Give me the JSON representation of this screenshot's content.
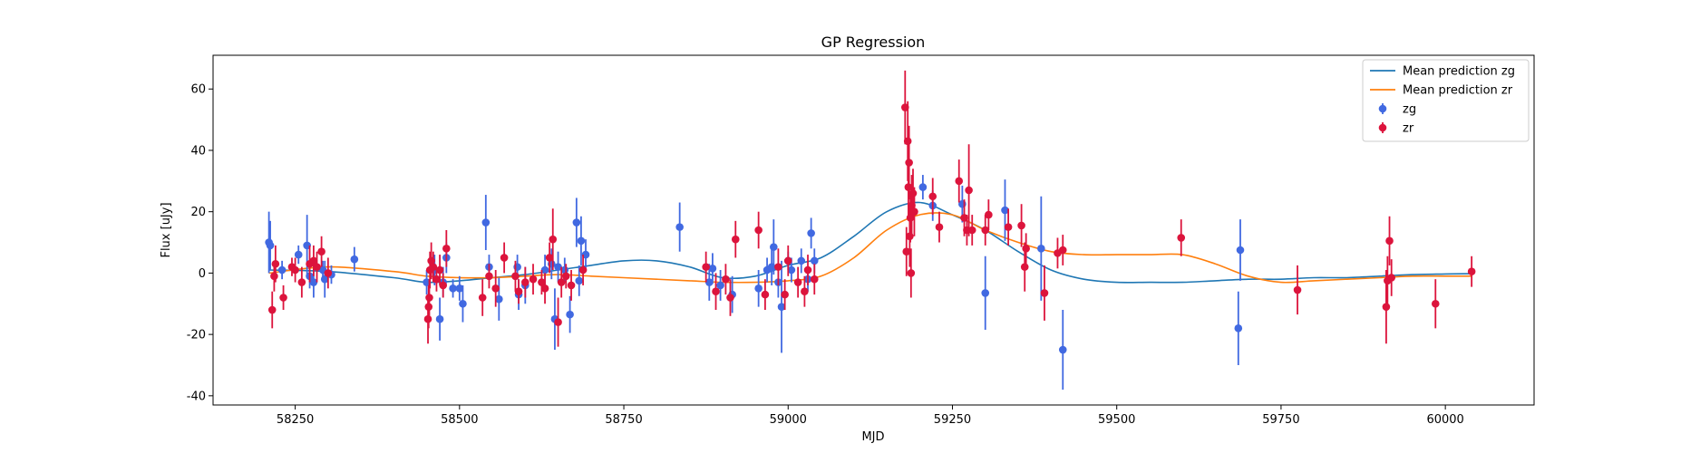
{
  "chart_data": {
    "type": "scatter",
    "title": "GP Regression",
    "xlabel": "MJD",
    "ylabel": "Flux [uJy]",
    "xlim": [
      58125,
      60135
    ],
    "ylim": [
      -43,
      71
    ],
    "xticks": [
      58250,
      58500,
      58750,
      59000,
      59250,
      59500,
      59750,
      60000
    ],
    "yticks": [
      -40,
      -20,
      0,
      20,
      40,
      60
    ],
    "grid": false,
    "legend_position": "top-right",
    "colors": {
      "zg_line": "#1f77b4",
      "zr_line": "#ff7f0e",
      "zg_points": "#4169e1",
      "zr_points": "#dc143c"
    },
    "lines": [
      {
        "name": "Mean prediction zg",
        "color": "#1f77b4",
        "x": [
          58210,
          58300,
          58400,
          58450,
          58500,
          58550,
          58600,
          58650,
          58700,
          58750,
          58800,
          58850,
          58900,
          58950,
          59000,
          59050,
          59100,
          59150,
          59200,
          59250,
          59300,
          59350,
          59400,
          59450,
          59500,
          59550,
          59600,
          59650,
          59700,
          59750,
          59800,
          59850,
          59900,
          59950,
          60000,
          60040
        ],
        "y": [
          1,
          0.5,
          -1.5,
          -3,
          -2.5,
          -1.5,
          -0.5,
          1,
          2.5,
          4,
          4,
          2,
          -1.5,
          -1,
          2.5,
          5,
          12,
          20,
          23,
          19,
          14,
          7,
          1,
          -2,
          -3,
          -3,
          -3,
          -2.5,
          -2,
          -2,
          -1.5,
          -1.5,
          -1,
          -0.5,
          -0.3,
          -0.2
        ]
      },
      {
        "name": "Mean prediction zr",
        "color": "#ff7f0e",
        "x": [
          58210,
          58300,
          58400,
          58450,
          58500,
          58550,
          58600,
          58650,
          58700,
          58750,
          58800,
          58850,
          58900,
          58950,
          59000,
          59050,
          59100,
          59150,
          59200,
          59250,
          59300,
          59350,
          59400,
          59450,
          59500,
          59550,
          59600,
          59650,
          59700,
          59750,
          59800,
          59850,
          59900,
          59950,
          60000,
          60040
        ],
        "y": [
          0,
          2,
          0.5,
          -1,
          -1.5,
          -1.5,
          -1,
          -0.5,
          -1,
          -1.5,
          -2,
          -2.5,
          -3,
          -3,
          -2.5,
          -1,
          5,
          14,
          19,
          19,
          14,
          10,
          7,
          6,
          6,
          6,
          6,
          3,
          -1,
          -3,
          -2.5,
          -2,
          -1.5,
          -1,
          -1,
          -1
        ]
      }
    ],
    "series": [
      {
        "name": "zg",
        "color": "#4169e1",
        "points": [
          {
            "x": 58210,
            "y": 10,
            "err": 10
          },
          {
            "x": 58212,
            "y": 9,
            "err": 8
          },
          {
            "x": 58230,
            "y": 1,
            "err": 3
          },
          {
            "x": 58255,
            "y": 6,
            "err": 3
          },
          {
            "x": 58268,
            "y": 9,
            "err": 10
          },
          {
            "x": 58272,
            "y": -1,
            "err": 4
          },
          {
            "x": 58278,
            "y": -3,
            "err": 5
          },
          {
            "x": 58292,
            "y": 1,
            "err": 3
          },
          {
            "x": 58295,
            "y": -2,
            "err": 6
          },
          {
            "x": 58305,
            "y": -0.5,
            "err": 3
          },
          {
            "x": 58340,
            "y": 4.5,
            "err": 4
          },
          {
            "x": 58450,
            "y": -3,
            "err": 4
          },
          {
            "x": 58462,
            "y": 1,
            "err": 5
          },
          {
            "x": 58470,
            "y": -15,
            "err": 7
          },
          {
            "x": 58475,
            "y": -3,
            "err": 5
          },
          {
            "x": 58480,
            "y": 5,
            "err": 5
          },
          {
            "x": 58490,
            "y": -5,
            "err": 3
          },
          {
            "x": 58500,
            "y": -5,
            "err": 4
          },
          {
            "x": 58505,
            "y": -10,
            "err": 6
          },
          {
            "x": 58540,
            "y": 16.5,
            "err": 9
          },
          {
            "x": 58545,
            "y": 2,
            "err": 4
          },
          {
            "x": 58560,
            "y": -8.5,
            "err": 7
          },
          {
            "x": 58588,
            "y": 2,
            "err": 4
          },
          {
            "x": 58590,
            "y": -7,
            "err": 5
          },
          {
            "x": 58600,
            "y": -4,
            "err": 6
          },
          {
            "x": 58630,
            "y": 1,
            "err": 5
          },
          {
            "x": 58640,
            "y": 3,
            "err": 5
          },
          {
            "x": 58645,
            "y": -15,
            "err": 10
          },
          {
            "x": 58650,
            "y": 2,
            "err": 5
          },
          {
            "x": 58660,
            "y": 1,
            "err": 4
          },
          {
            "x": 58668,
            "y": -13.5,
            "err": 6
          },
          {
            "x": 58678,
            "y": 16.5,
            "err": 8
          },
          {
            "x": 58682,
            "y": -2.5,
            "err": 5
          },
          {
            "x": 58685,
            "y": 10.5,
            "err": 8
          },
          {
            "x": 58692,
            "y": 6,
            "err": 5
          },
          {
            "x": 58835,
            "y": 15,
            "err": 8
          },
          {
            "x": 58880,
            "y": -3,
            "err": 6
          },
          {
            "x": 58885,
            "y": 1.5,
            "err": 5
          },
          {
            "x": 58897,
            "y": -4,
            "err": 5
          },
          {
            "x": 58915,
            "y": -7,
            "err": 6
          },
          {
            "x": 58955,
            "y": -5,
            "err": 6
          },
          {
            "x": 58968,
            "y": 1,
            "err": 4
          },
          {
            "x": 58975,
            "y": 2,
            "err": 6
          },
          {
            "x": 58978,
            "y": 8.5,
            "err": 9
          },
          {
            "x": 58985,
            "y": -3,
            "err": 5
          },
          {
            "x": 58990,
            "y": -11,
            "err": 15
          },
          {
            "x": 59000,
            "y": 4,
            "err": 3
          },
          {
            "x": 59005,
            "y": 1,
            "err": 4
          },
          {
            "x": 59020,
            "y": 4,
            "err": 4
          },
          {
            "x": 59030,
            "y": -2,
            "err": 4
          },
          {
            "x": 59035,
            "y": 13,
            "err": 5
          },
          {
            "x": 59040,
            "y": 4,
            "err": 4
          },
          {
            "x": 59205,
            "y": 28,
            "err": 4
          },
          {
            "x": 59220,
            "y": 22,
            "err": 5
          },
          {
            "x": 59265,
            "y": 22.5,
            "err": 6
          },
          {
            "x": 59300,
            "y": -6.5,
            "err": 12
          },
          {
            "x": 59330,
            "y": 20.5,
            "err": 10
          },
          {
            "x": 59385,
            "y": 8,
            "err": 17
          },
          {
            "x": 59418,
            "y": -25,
            "err": 13
          },
          {
            "x": 59685,
            "y": -18,
            "err": 12
          },
          {
            "x": 59688,
            "y": 7.5,
            "err": 10
          }
        ]
      },
      {
        "name": "zr",
        "color": "#dc143c",
        "points": [
          {
            "x": 58215,
            "y": -12,
            "err": 6
          },
          {
            "x": 58218,
            "y": -1,
            "err": 5
          },
          {
            "x": 58220,
            "y": 3,
            "err": 6
          },
          {
            "x": 58232,
            "y": -8,
            "err": 4
          },
          {
            "x": 58245,
            "y": 2,
            "err": 3
          },
          {
            "x": 58250,
            "y": 1,
            "err": 4
          },
          {
            "x": 58260,
            "y": -3,
            "err": 5
          },
          {
            "x": 58272,
            "y": 3,
            "err": 6
          },
          {
            "x": 58278,
            "y": 4,
            "err": 5
          },
          {
            "x": 58283,
            "y": 2,
            "err": 5
          },
          {
            "x": 58290,
            "y": 7,
            "err": 5
          },
          {
            "x": 58300,
            "y": 0,
            "err": 5
          },
          {
            "x": 58452,
            "y": -15,
            "err": 8
          },
          {
            "x": 58453,
            "y": -11,
            "err": 7
          },
          {
            "x": 58454,
            "y": -8,
            "err": 6
          },
          {
            "x": 58455,
            "y": 1,
            "err": 6
          },
          {
            "x": 58457,
            "y": 4,
            "err": 6
          },
          {
            "x": 58460,
            "y": 2,
            "err": 5
          },
          {
            "x": 58465,
            "y": -2,
            "err": 4
          },
          {
            "x": 58470,
            "y": 1,
            "err": 5
          },
          {
            "x": 58475,
            "y": -4,
            "err": 4
          },
          {
            "x": 58480,
            "y": 8,
            "err": 6
          },
          {
            "x": 58535,
            "y": -8,
            "err": 6
          },
          {
            "x": 58545,
            "y": -1,
            "err": 4
          },
          {
            "x": 58555,
            "y": -5,
            "err": 6
          },
          {
            "x": 58568,
            "y": 5,
            "err": 5
          },
          {
            "x": 58585,
            "y": -1,
            "err": 5
          },
          {
            "x": 58590,
            "y": -6,
            "err": 4
          },
          {
            "x": 58600,
            "y": -3,
            "err": 5
          },
          {
            "x": 58612,
            "y": -2,
            "err": 5
          },
          {
            "x": 58625,
            "y": -3,
            "err": 4
          },
          {
            "x": 58630,
            "y": -5,
            "err": 5
          },
          {
            "x": 58637,
            "y": 5,
            "err": 5
          },
          {
            "x": 58642,
            "y": 11,
            "err": 10
          },
          {
            "x": 58650,
            "y": -16,
            "err": 8
          },
          {
            "x": 58655,
            "y": -3,
            "err": 5
          },
          {
            "x": 58662,
            "y": -1,
            "err": 4
          },
          {
            "x": 58670,
            "y": -4,
            "err": 5
          },
          {
            "x": 58688,
            "y": 1,
            "err": 5
          },
          {
            "x": 58875,
            "y": 2,
            "err": 5
          },
          {
            "x": 58890,
            "y": -6,
            "err": 6
          },
          {
            "x": 58905,
            "y": -2,
            "err": 5
          },
          {
            "x": 58912,
            "y": -8,
            "err": 6
          },
          {
            "x": 58920,
            "y": 11,
            "err": 6
          },
          {
            "x": 58955,
            "y": 14,
            "err": 6
          },
          {
            "x": 58965,
            "y": -7,
            "err": 5
          },
          {
            "x": 58985,
            "y": 2,
            "err": 6
          },
          {
            "x": 58995,
            "y": -7,
            "err": 5
          },
          {
            "x": 59000,
            "y": 4,
            "err": 5
          },
          {
            "x": 59015,
            "y": -3,
            "err": 5
          },
          {
            "x": 59025,
            "y": -6,
            "err": 5
          },
          {
            "x": 59030,
            "y": 1,
            "err": 5
          },
          {
            "x": 59040,
            "y": -2,
            "err": 5
          },
          {
            "x": 59178,
            "y": 54,
            "err": 12
          },
          {
            "x": 59180,
            "y": 7,
            "err": 8
          },
          {
            "x": 59182,
            "y": 43,
            "err": 13
          },
          {
            "x": 59183,
            "y": 28,
            "err": 10
          },
          {
            "x": 59184,
            "y": 36,
            "err": 12
          },
          {
            "x": 59185,
            "y": 12,
            "err": 10
          },
          {
            "x": 59186,
            "y": 18,
            "err": 8
          },
          {
            "x": 59187,
            "y": 0,
            "err": 8
          },
          {
            "x": 59188,
            "y": 22,
            "err": 10
          },
          {
            "x": 59190,
            "y": 26,
            "err": 8
          },
          {
            "x": 59192,
            "y": 20,
            "err": 8
          },
          {
            "x": 59220,
            "y": 25,
            "err": 6
          },
          {
            "x": 59230,
            "y": 15,
            "err": 5
          },
          {
            "x": 59260,
            "y": 30,
            "err": 7
          },
          {
            "x": 59268,
            "y": 18,
            "err": 6
          },
          {
            "x": 59272,
            "y": 14,
            "err": 5
          },
          {
            "x": 59275,
            "y": 27,
            "err": 15
          },
          {
            "x": 59280,
            "y": 14,
            "err": 5
          },
          {
            "x": 59300,
            "y": 14,
            "err": 5
          },
          {
            "x": 59305,
            "y": 19,
            "err": 5
          },
          {
            "x": 59335,
            "y": 15,
            "err": 6
          },
          {
            "x": 59355,
            "y": 15.5,
            "err": 7
          },
          {
            "x": 59360,
            "y": 2,
            "err": 8
          },
          {
            "x": 59362,
            "y": 8,
            "err": 5
          },
          {
            "x": 59390,
            "y": -6.5,
            "err": 9
          },
          {
            "x": 59410,
            "y": 6.5,
            "err": 5
          },
          {
            "x": 59418,
            "y": 7.5,
            "err": 5
          },
          {
            "x": 59598,
            "y": 11.5,
            "err": 6
          },
          {
            "x": 59775,
            "y": -5.5,
            "err": 8
          },
          {
            "x": 59910,
            "y": -11,
            "err": 12
          },
          {
            "x": 59912,
            "y": -2.5,
            "err": 8
          },
          {
            "x": 59915,
            "y": 10.5,
            "err": 8
          },
          {
            "x": 59918,
            "y": -1.5,
            "err": 6
          },
          {
            "x": 59985,
            "y": -10,
            "err": 8
          },
          {
            "x": 60040,
            "y": 0.5,
            "err": 5
          }
        ]
      }
    ],
    "legend": [
      {
        "label": "Mean prediction zg",
        "kind": "line",
        "color": "#1f77b4"
      },
      {
        "label": "Mean prediction zr",
        "kind": "line",
        "color": "#ff7f0e"
      },
      {
        "label": "zg",
        "kind": "errorbar",
        "color": "#4169e1"
      },
      {
        "label": "zr",
        "kind": "errorbar",
        "color": "#dc143c"
      }
    ]
  }
}
